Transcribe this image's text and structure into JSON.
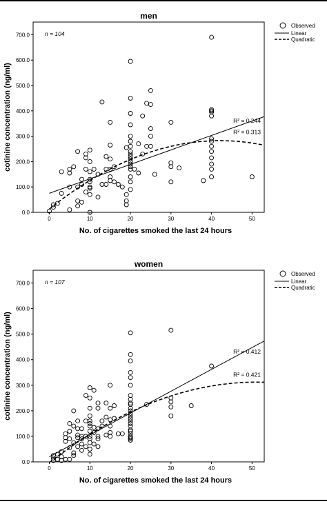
{
  "colors": {
    "ink": "#000000",
    "background": "#ffffff"
  },
  "chart_data": [
    {
      "type": "scatter",
      "title": "men",
      "xlabel": "No. of cigarettes smoked the last 24 hours",
      "ylabel": "cotinine concentration (ng/ml)",
      "xlim": [
        -4,
        53
      ],
      "ylim": [
        0,
        750
      ],
      "x_ticks": [
        0,
        10,
        20,
        30,
        40,
        50
      ],
      "y_ticks": [
        0,
        100,
        200,
        300,
        400,
        500,
        600,
        700
      ],
      "y_tick_labels": [
        "0.0",
        "100.0",
        "200.0",
        "300.0",
        "400.0",
        "500.0",
        "600.0",
        "700.0"
      ],
      "grid": false,
      "legend_position": "top-right",
      "legend": [
        "Observed",
        "Linear",
        "Quadratic"
      ],
      "annotations": {
        "n_label": "n = 104",
        "r2_linear": "R² = 0.244",
        "r2_quadratic": "R² = 0.313"
      },
      "series": [
        {
          "name": "Observed",
          "points": [
            [
              0,
              5
            ],
            [
              1,
              20
            ],
            [
              1,
              30
            ],
            [
              2,
              35
            ],
            [
              3,
              75
            ],
            [
              3,
              160
            ],
            [
              5,
              10
            ],
            [
              5,
              100
            ],
            [
              5,
              155
            ],
            [
              5,
              170
            ],
            [
              7,
              25
            ],
            [
              7,
              45
            ],
            [
              7,
              100
            ],
            [
              7,
              240
            ],
            [
              8,
              130
            ],
            [
              8,
              110
            ],
            [
              9,
              80
            ],
            [
              9,
              170
            ],
            [
              9,
              230
            ],
            [
              10,
              0
            ],
            [
              10,
              70
            ],
            [
              10,
              95
            ],
            [
              10,
              100
            ],
            [
              10,
              120
            ],
            [
              10,
              160
            ],
            [
              10,
              200
            ],
            [
              10,
              245
            ],
            [
              10,
              130
            ],
            [
              12,
              150
            ],
            [
              13,
              110
            ],
            [
              14,
              170
            ],
            [
              14,
              220
            ],
            [
              15,
              125
            ],
            [
              15,
              140
            ],
            [
              15,
              170
            ],
            [
              15,
              210
            ],
            [
              15,
              265
            ],
            [
              15,
              355
            ],
            [
              16,
              180
            ],
            [
              17,
              110
            ],
            [
              18,
              100
            ],
            [
              19,
              70
            ],
            [
              19,
              45
            ],
            [
              19,
              30
            ],
            [
              20,
              90
            ],
            [
              20,
              120
            ],
            [
              20,
              140
            ],
            [
              20,
              170
            ],
            [
              20,
              180
            ],
            [
              20,
              190
            ],
            [
              20,
              200
            ],
            [
              20,
              210
            ],
            [
              20,
              220
            ],
            [
              20,
              230
            ],
            [
              20,
              240
            ],
            [
              20,
              260
            ],
            [
              20,
              280
            ],
            [
              20,
              300
            ],
            [
              20,
              345
            ],
            [
              20,
              390
            ],
            [
              20,
              450
            ],
            [
              20,
              595
            ],
            [
              21,
              170
            ],
            [
              22,
              155
            ],
            [
              23,
              230
            ],
            [
              23,
              380
            ],
            [
              24,
              430
            ],
            [
              25,
              260
            ],
            [
              25,
              300
            ],
            [
              25,
              330
            ],
            [
              25,
              480
            ],
            [
              13,
              435
            ],
            [
              26,
              150
            ],
            [
              22,
              270
            ],
            [
              25,
              425
            ],
            [
              24,
              260
            ],
            [
              19,
              255
            ],
            [
              11,
              170
            ],
            [
              6,
              180
            ],
            [
              9,
              215
            ],
            [
              30,
              120
            ],
            [
              30,
              180
            ],
            [
              30,
              195
            ],
            [
              30,
              355
            ],
            [
              32,
              175
            ],
            [
              38,
              125
            ],
            [
              40,
              140
            ],
            [
              40,
              170
            ],
            [
              40,
              190
            ],
            [
              40,
              215
            ],
            [
              40,
              240
            ],
            [
              40,
              260
            ],
            [
              40,
              280
            ],
            [
              40,
              290
            ],
            [
              40,
              380
            ],
            [
              40,
              395
            ],
            [
              40,
              400
            ],
            [
              40,
              405
            ],
            [
              40,
              690
            ],
            [
              50,
              140
            ],
            [
              8,
              40
            ],
            [
              12,
              60
            ],
            [
              16,
              120
            ],
            [
              14,
              110
            ]
          ]
        },
        {
          "name": "Linear",
          "intercept": 75,
          "slope": 5.7
        },
        {
          "name": "Quadratic",
          "coefficients": [
            13,
            12.8,
            -0.152
          ]
        }
      ]
    },
    {
      "type": "scatter",
      "title": "women",
      "xlabel": "No. of cigarettes smoked the last 24 hours",
      "ylabel": "cotinine concentration (ng/ml)",
      "xlim": [
        -4,
        53
      ],
      "ylim": [
        0,
        750
      ],
      "x_ticks": [
        0,
        10,
        20,
        30,
        40,
        50
      ],
      "y_ticks": [
        0,
        100,
        200,
        300,
        400,
        500,
        600,
        700
      ],
      "y_tick_labels": [
        "0.0",
        "100.0",
        "200.0",
        "300.0",
        "400.0",
        "500.0",
        "600.0",
        "700.0"
      ],
      "grid": false,
      "legend_position": "top-right",
      "legend": [
        "Observed",
        "Linear",
        "Quadratic"
      ],
      "annotations": {
        "n_label": "n = 107",
        "r2_linear": "R² = 0.412",
        "r2_quadratic": "R² = 0.421"
      },
      "series": [
        {
          "name": "Observed",
          "points": [
            [
              1,
              5
            ],
            [
              1,
              15
            ],
            [
              1,
              25
            ],
            [
              2,
              10
            ],
            [
              2,
              30
            ],
            [
              3,
              5
            ],
            [
              3,
              20
            ],
            [
              3,
              40
            ],
            [
              4,
              10
            ],
            [
              4,
              80
            ],
            [
              4,
              110
            ],
            [
              5,
              10
            ],
            [
              5,
              55
            ],
            [
              5,
              90
            ],
            [
              5,
              120
            ],
            [
              5,
              150
            ],
            [
              6,
              25
            ],
            [
              6,
              35
            ],
            [
              6,
              140
            ],
            [
              6,
              200
            ],
            [
              7,
              60
            ],
            [
              7,
              95
            ],
            [
              7,
              105
            ],
            [
              7,
              160
            ],
            [
              8,
              70
            ],
            [
              8,
              100
            ],
            [
              8,
              130
            ],
            [
              9,
              100
            ],
            [
              9,
              160
            ],
            [
              9,
              260
            ],
            [
              10,
              30
            ],
            [
              10,
              50
            ],
            [
              10,
              75
            ],
            [
              10,
              100
            ],
            [
              10,
              120
            ],
            [
              10,
              140
            ],
            [
              10,
              150
            ],
            [
              10,
              180
            ],
            [
              10,
              210
            ],
            [
              10,
              250
            ],
            [
              10,
              290
            ],
            [
              11,
              115
            ],
            [
              11,
              280
            ],
            [
              12,
              90
            ],
            [
              12,
              130
            ],
            [
              12,
              210
            ],
            [
              12,
              230
            ],
            [
              13,
              140
            ],
            [
              14,
              105
            ],
            [
              14,
              175
            ],
            [
              14,
              230
            ],
            [
              15,
              100
            ],
            [
              15,
              115
            ],
            [
              15,
              165
            ],
            [
              15,
              210
            ],
            [
              15,
              300
            ],
            [
              16,
              170
            ],
            [
              16,
              220
            ],
            [
              17,
              110
            ],
            [
              18,
              110
            ],
            [
              20,
              85
            ],
            [
              20,
              90
            ],
            [
              20,
              95
            ],
            [
              20,
              100
            ],
            [
              20,
              110
            ],
            [
              20,
              120
            ],
            [
              20,
              125
            ],
            [
              20,
              140
            ],
            [
              20,
              150
            ],
            [
              20,
              160
            ],
            [
              20,
              170
            ],
            [
              20,
              180
            ],
            [
              20,
              190
            ],
            [
              20,
              200
            ],
            [
              20,
              210
            ],
            [
              20,
              225
            ],
            [
              20,
              230
            ],
            [
              20,
              245
            ],
            [
              20,
              260
            ],
            [
              20,
              300
            ],
            [
              20,
              330
            ],
            [
              20,
              350
            ],
            [
              20,
              395
            ],
            [
              20,
              420
            ],
            [
              20,
              505
            ],
            [
              24,
              225
            ],
            [
              30,
              180
            ],
            [
              30,
              215
            ],
            [
              30,
              235
            ],
            [
              30,
              250
            ],
            [
              30,
              515
            ],
            [
              35,
              220
            ],
            [
              40,
              375
            ],
            [
              9,
              60
            ],
            [
              11,
              70
            ],
            [
              7,
              130
            ],
            [
              8,
              45
            ],
            [
              13,
              160
            ],
            [
              6,
              75
            ],
            [
              4,
              95
            ],
            [
              12,
              60
            ],
            [
              15,
              140
            ],
            [
              10,
              90
            ],
            [
              10,
              160
            ],
            [
              12,
              100
            ],
            [
              11,
              135
            ],
            [
              8,
              90
            ]
          ]
        },
        {
          "name": "Linear",
          "intercept": 20,
          "slope": 8.55
        },
        {
          "name": "Quadratic",
          "coefficients": [
            -3,
            12.3,
            -0.12
          ]
        }
      ]
    }
  ]
}
